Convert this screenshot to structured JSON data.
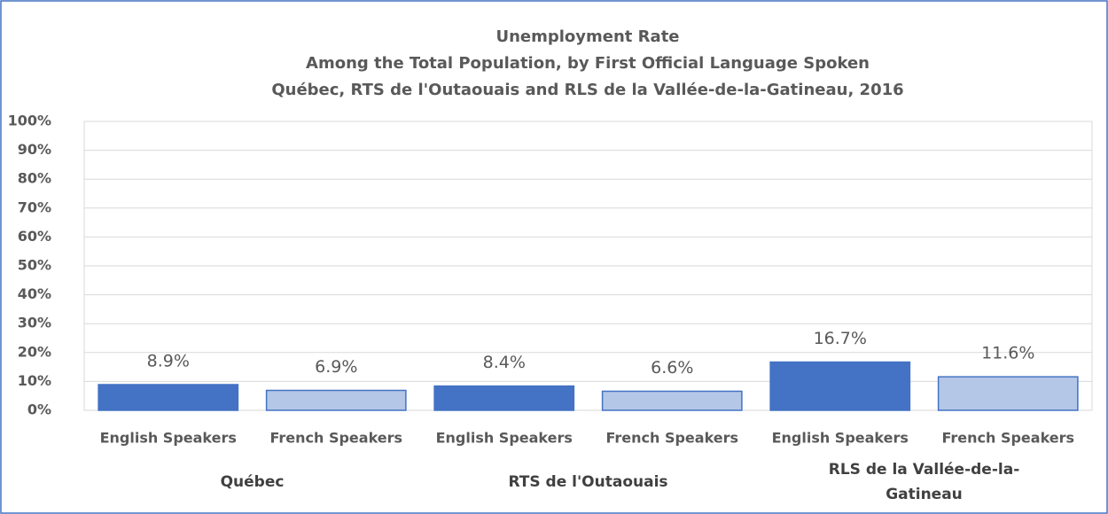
{
  "chart_data": {
    "type": "bar",
    "title": "Unemployment Rate",
    "subtitle": [
      "Among the Total Population, by First Official Language Spoken",
      "Québec, RTS de l'Outaouais and RLS de la Vallée-de-la-Gatineau, 2016"
    ],
    "categories": [
      "English Speakers",
      "French Speakers",
      "English Speakers",
      "French Speakers",
      "English Speakers",
      "French Speakers"
    ],
    "groups": [
      "Québec",
      "RTS de l'Outaouais",
      "RLS de la Vallée-de-la-Gatineau"
    ],
    "values": [
      8.9,
      6.9,
      8.4,
      6.6,
      16.7,
      11.6
    ],
    "value_labels": [
      "8.9%",
      "6.9%",
      "8.4%",
      "6.6%",
      "16.7%",
      "11.6%"
    ],
    "colors": [
      "#4472c4",
      "#b4c7e7",
      "#4472c4",
      "#b4c7e7",
      "#4472c4",
      "#b4c7e7"
    ],
    "ylim": [
      0,
      100
    ],
    "yticks": [
      {
        "value": 0,
        "label": "0%"
      },
      {
        "value": 10,
        "label": "10%"
      },
      {
        "value": 20,
        "label": "20%"
      },
      {
        "value": 30,
        "label": "30%"
      },
      {
        "value": 40,
        "label": "40%"
      },
      {
        "value": 50,
        "label": "50%"
      },
      {
        "value": 60,
        "label": "60%"
      },
      {
        "value": 70,
        "label": "70%"
      },
      {
        "value": 80,
        "label": "80%"
      },
      {
        "value": 90,
        "label": "90%"
      },
      {
        "value": 100,
        "label": "100%"
      }
    ],
    "grid": true
  }
}
